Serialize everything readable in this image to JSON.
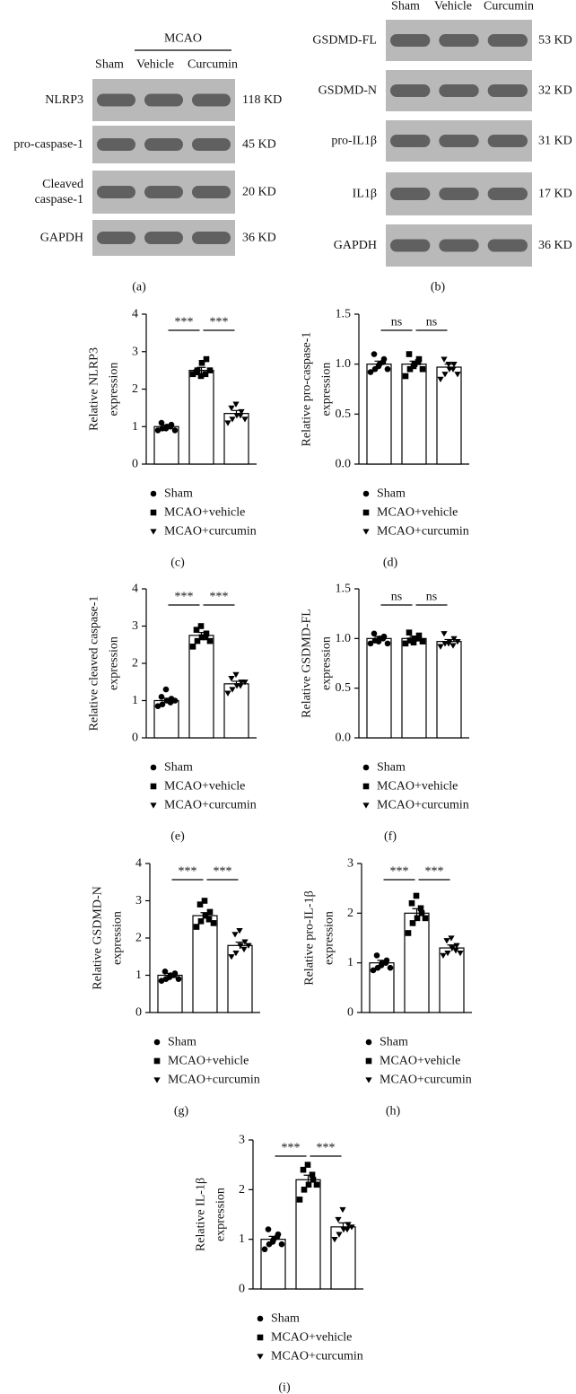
{
  "blots": [
    {
      "group_label": "MCAO",
      "lanes": [
        "Sham",
        "Vehicle",
        "Curcumin"
      ],
      "rows": [
        {
          "label": "NLRP3",
          "size": "118 KD"
        },
        {
          "label": "pro-caspase-1",
          "size": "45 KD"
        },
        {
          "label": [
            "Cleaved",
            "caspase-1"
          ],
          "size": "20 KD"
        },
        {
          "label": "GAPDH",
          "size": "36 KD"
        }
      ],
      "caption": "(a)"
    },
    {
      "lanes": [
        "Sham",
        "Vehicle",
        "Curcumin"
      ],
      "rows": [
        {
          "label": "GSDMD-FL",
          "size": "53 KD"
        },
        {
          "label": "GSDMD-N",
          "size": "32 KD"
        },
        {
          "label": "pro-IL1β",
          "size": "31 KD"
        },
        {
          "label": "IL1β",
          "size": "17 KD"
        },
        {
          "label": "GAPDH",
          "size": "36 KD"
        }
      ],
      "caption": "(b)"
    }
  ],
  "chart_data": [
    {
      "type": "bar",
      "ylabel": [
        "Relative NLRP3",
        "expression"
      ],
      "categories": [
        "Sham",
        "MCAO+vehicle",
        "MCAO+curcumin"
      ],
      "values": [
        1.0,
        2.5,
        1.35
      ],
      "errors": [
        0.04,
        0.08,
        0.08
      ],
      "points": [
        [
          0.9,
          0.95,
          1.0,
          1.05,
          1.1,
          0.95,
          1.0,
          0.9
        ],
        [
          2.4,
          2.5,
          2.7,
          2.8,
          2.45,
          2.35,
          2.4,
          2.5
        ],
        [
          1.1,
          1.2,
          1.3,
          1.4,
          1.5,
          1.6,
          1.3,
          1.2
        ]
      ],
      "annotations": [
        "***",
        "***"
      ],
      "ylim": [
        0,
        4
      ],
      "yticks": [
        0,
        1,
        2,
        3,
        4
      ],
      "color": "#ffffff",
      "markers": [
        "circle",
        "square",
        "triangle-down"
      ],
      "caption": "(c)"
    },
    {
      "type": "bar",
      "ylabel": [
        "Relative pro-caspase-1",
        "expression"
      ],
      "categories": [
        "Sham",
        "MCAO+vehicle",
        "MCAO+curcumin"
      ],
      "values": [
        1.0,
        1.0,
        0.97
      ],
      "errors": [
        0.03,
        0.03,
        0.03
      ],
      "points": [
        [
          0.92,
          0.95,
          1.0,
          1.05,
          1.1,
          0.98,
          1.02,
          0.95
        ],
        [
          0.88,
          0.95,
          1.0,
          1.05,
          1.1,
          0.98,
          1.02,
          0.95
        ],
        [
          0.85,
          0.9,
          0.95,
          1.0,
          1.05,
          1.0,
          0.95,
          0.9
        ]
      ],
      "annotations": [
        "ns",
        "ns"
      ],
      "ylim": [
        0,
        1.5
      ],
      "yticks": [
        {
          "value": 0,
          "label": "0.0"
        },
        0.5,
        {
          "value": 1,
          "label": "1.0"
        },
        1.5
      ],
      "color": "#ffffff",
      "markers": [
        "circle",
        "square",
        "triangle-down"
      ],
      "caption": "(d)"
    },
    {
      "type": "bar",
      "ylabel": [
        "Relative cleaved caspase-1",
        "expression"
      ],
      "categories": [
        "Sham",
        "MCAO+vehicle",
        "MCAO+curcumin"
      ],
      "values": [
        1.0,
        2.75,
        1.45
      ],
      "errors": [
        0.06,
        0.08,
        0.07
      ],
      "points": [
        [
          0.85,
          0.9,
          1.0,
          1.05,
          1.1,
          1.3,
          0.95,
          1.0
        ],
        [
          2.45,
          2.6,
          2.7,
          2.8,
          2.9,
          3.0,
          2.7,
          2.6
        ],
        [
          1.2,
          1.3,
          1.4,
          1.5,
          1.6,
          1.7,
          1.4,
          1.5
        ]
      ],
      "annotations": [
        "***",
        "***"
      ],
      "ylim": [
        0,
        4
      ],
      "yticks": [
        0,
        1,
        2,
        3,
        4
      ],
      "color": "#ffffff",
      "markers": [
        "circle",
        "square",
        "triangle-down"
      ],
      "caption": "(e)"
    },
    {
      "type": "bar",
      "ylabel": [
        "Relative GSDMD-FL",
        "expression"
      ],
      "categories": [
        "Sham",
        "MCAO+vehicle",
        "MCAO+curcumin"
      ],
      "values": [
        1.0,
        1.0,
        0.97
      ],
      "errors": [
        0.02,
        0.02,
        0.02
      ],
      "points": [
        [
          0.95,
          0.98,
          1.0,
          1.02,
          1.05,
          0.97,
          1.0,
          0.95
        ],
        [
          0.95,
          0.98,
          1.0,
          1.03,
          1.06,
          0.96,
          1.0,
          0.97
        ],
        [
          0.92,
          0.95,
          0.97,
          1.0,
          1.05,
          0.95,
          0.93,
          0.97
        ]
      ],
      "annotations": [
        "ns",
        "ns"
      ],
      "ylim": [
        0,
        1.5
      ],
      "yticks": [
        {
          "value": 0,
          "label": "0.0"
        },
        0.5,
        {
          "value": 1,
          "label": "1.0"
        },
        1.5
      ],
      "color": "#ffffff",
      "markers": [
        "circle",
        "square",
        "triangle-down"
      ],
      "caption": "(f)"
    },
    {
      "type": "bar",
      "ylabel": [
        "Relative GSDMD-N",
        "expression"
      ],
      "categories": [
        "Sham",
        "MCAO+vehicle",
        "MCAO+curcumin"
      ],
      "values": [
        1.0,
        2.6,
        1.8
      ],
      "errors": [
        0.05,
        0.08,
        0.09
      ],
      "points": [
        [
          0.85,
          0.9,
          1.0,
          1.05,
          1.1,
          0.95,
          1.0,
          0.9
        ],
        [
          2.3,
          2.45,
          2.6,
          2.7,
          2.9,
          3.0,
          2.5,
          2.4
        ],
        [
          1.5,
          1.6,
          1.8,
          1.9,
          2.1,
          2.2,
          1.7,
          1.8
        ]
      ],
      "annotations": [
        "***",
        "***"
      ],
      "ylim": [
        0,
        4
      ],
      "yticks": [
        0,
        1,
        2,
        3,
        4
      ],
      "color": "#ffffff",
      "markers": [
        "circle",
        "square",
        "triangle-down"
      ],
      "caption": "(g)"
    },
    {
      "type": "bar",
      "ylabel": [
        "Relative pro-IL-1β",
        "expression"
      ],
      "categories": [
        "Sham",
        "MCAO+vehicle",
        "MCAO+curcumin"
      ],
      "values": [
        1.0,
        2.0,
        1.3
      ],
      "errors": [
        0.05,
        0.09,
        0.06
      ],
      "points": [
        [
          0.85,
          0.9,
          1.0,
          1.05,
          1.15,
          0.95,
          1.0,
          0.9
        ],
        [
          1.6,
          1.8,
          1.9,
          2.0,
          2.2,
          2.35,
          2.1,
          1.9
        ],
        [
          1.15,
          1.2,
          1.3,
          1.35,
          1.45,
          1.5,
          1.25,
          1.2
        ]
      ],
      "annotations": [
        "***",
        "***"
      ],
      "ylim": [
        0,
        3
      ],
      "yticks": [
        0,
        1,
        2,
        3
      ],
      "color": "#ffffff",
      "markers": [
        "circle",
        "square",
        "triangle-down"
      ],
      "caption": "(h)"
    },
    {
      "type": "bar",
      "ylabel": [
        "Relative IL-1β",
        "expression"
      ],
      "categories": [
        "Sham",
        "MCAO+vehicle",
        "MCAO+curcumin"
      ],
      "values": [
        1.0,
        2.2,
        1.25
      ],
      "errors": [
        0.06,
        0.09,
        0.08
      ],
      "points": [
        [
          0.8,
          0.9,
          1.0,
          1.1,
          1.2,
          0.95,
          1.05,
          0.9
        ],
        [
          1.8,
          2.0,
          2.1,
          2.2,
          2.4,
          2.5,
          2.3,
          2.1
        ],
        [
          1.0,
          1.1,
          1.2,
          1.3,
          1.4,
          1.6,
          1.2,
          1.25
        ]
      ],
      "annotations": [
        "***",
        "***"
      ],
      "ylim": [
        0,
        3
      ],
      "yticks": [
        0,
        1,
        2,
        3
      ],
      "color": "#ffffff",
      "markers": [
        "circle",
        "square",
        "triangle-down"
      ],
      "caption": "(i)"
    }
  ]
}
